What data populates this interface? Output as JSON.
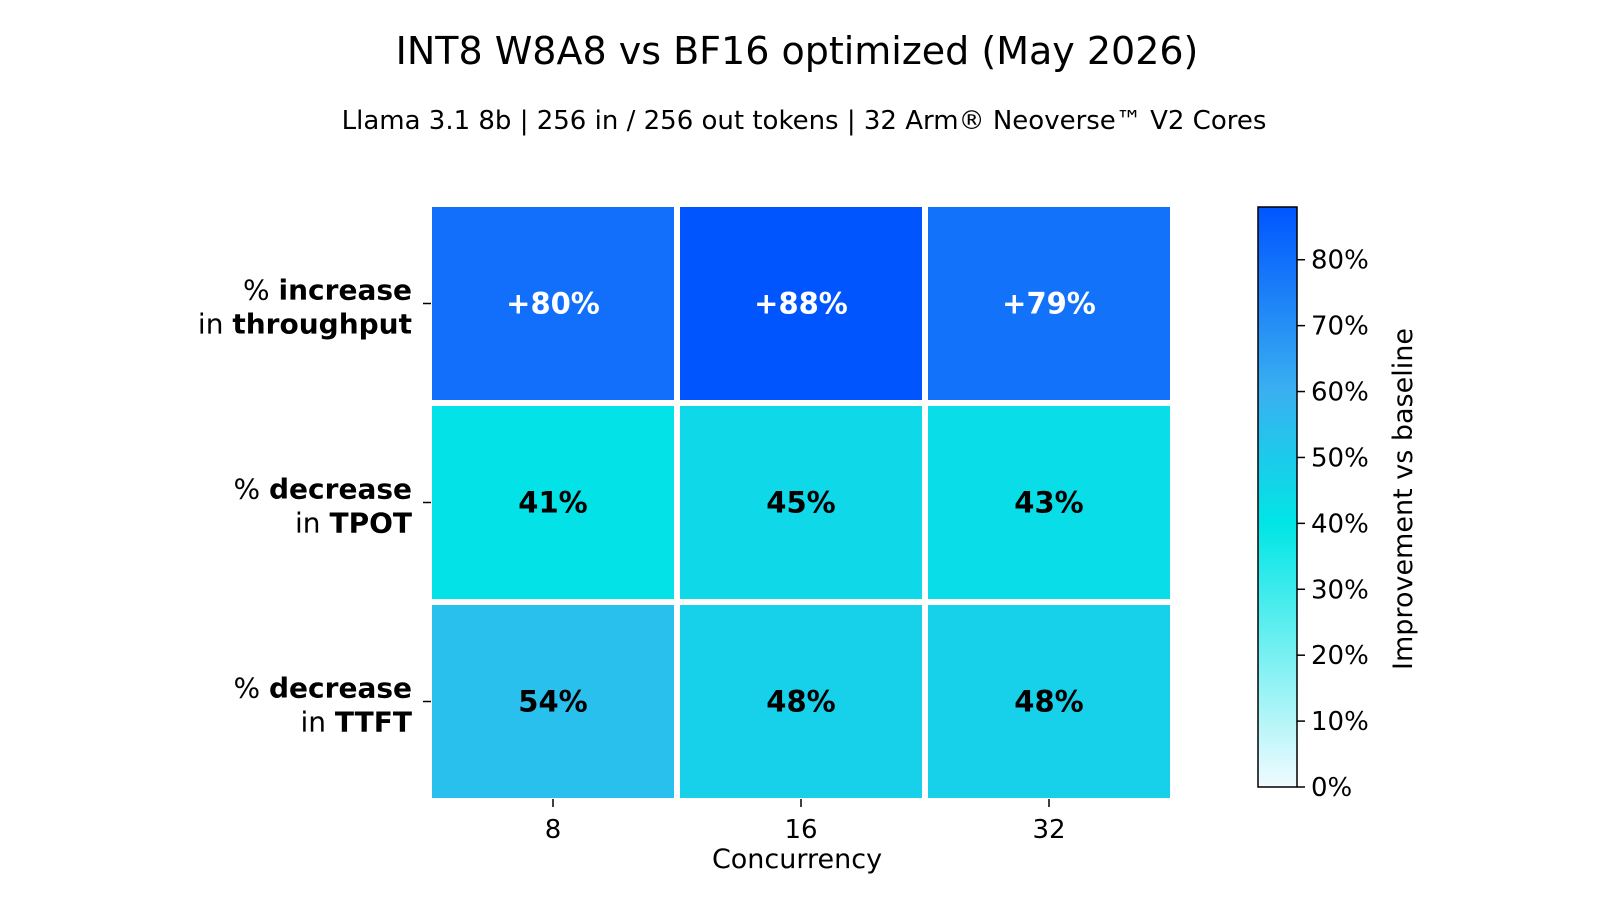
{
  "chart_data": {
    "type": "heatmap",
    "title": "INT8 W8A8 vs BF16 optimized (May 2026)",
    "subtitle": "Llama 3.1 8b | 256 in / 256 out tokens | 32 Arm® Neoverse™ V2 Cores",
    "xlabel": "Concurrency",
    "columns": [
      "8",
      "16",
      "32"
    ],
    "rows": [
      {
        "prefix": "% ",
        "bold1": "increase",
        "line2_prefix": "in ",
        "bold2": "throughput"
      },
      {
        "prefix": "% ",
        "bold1": "decrease",
        "line2_prefix": "in ",
        "bold2": "TPOT"
      },
      {
        "prefix": "% ",
        "bold1": "decrease",
        "line2_prefix": "in ",
        "bold2": "TTFT"
      }
    ],
    "values": [
      [
        80,
        88,
        79
      ],
      [
        41,
        45,
        43
      ],
      [
        54,
        48,
        48
      ]
    ],
    "cell_labels": [
      [
        "+80%",
        "+88%",
        "+79%"
      ],
      [
        "41%",
        "45%",
        "43%"
      ],
      [
        "54%",
        "48%",
        "48%"
      ]
    ],
    "colorbar": {
      "label": "Improvement vs baseline",
      "range": [
        0,
        88
      ],
      "ticks": [
        0,
        10,
        20,
        30,
        40,
        50,
        60,
        70,
        80
      ],
      "tick_labels": [
        "0%",
        "10%",
        "20%",
        "30%",
        "40%",
        "50%",
        "60%",
        "70%",
        "80%"
      ],
      "color_stops": [
        {
          "value": 0,
          "color": "#f0fbff"
        },
        {
          "value": 40,
          "color": "#00e5e5"
        },
        {
          "value": 60,
          "color": "#3ab0f0"
        },
        {
          "value": 88,
          "color": "#0055ff"
        }
      ]
    },
    "text_colors": {
      "dark": "#ffffff",
      "light": "#000000"
    }
  }
}
